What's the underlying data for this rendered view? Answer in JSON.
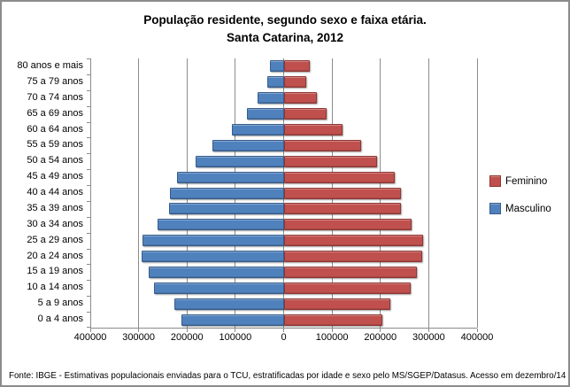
{
  "title": {
    "line1": "População residente, segundo sexo e faixa etária.",
    "line2": "Santa Catarina, 2012"
  },
  "legend": {
    "items": [
      {
        "label": "Feminino",
        "color": "#C0504D",
        "border": "#8C3836"
      },
      {
        "label": "Masculino",
        "color": "#4F81BD",
        "border": "#385D8A"
      }
    ]
  },
  "footer": {
    "text": "Fonte:  IBGE - Estimativas populacionais enviadas para o TCU, estratificadas por idade e sexo pelo MS/SGEP/Datasus. Acesso em dezembro/14"
  },
  "colors": {
    "grid": "#8c8c8c",
    "axis": "#8c8c8c",
    "frame_border": "#8c8c8c",
    "masculino_fill": "#4F81BD",
    "masculino_border": "#385D8A",
    "feminino_fill": "#C0504D",
    "feminino_border": "#8C3836"
  },
  "chart_data": {
    "type": "bar",
    "subtype": "population-pyramid",
    "title": "População residente, segundo sexo e faixa etária. Santa Catarina, 2012",
    "categories": [
      "80 anos e mais",
      "75 a 79 anos",
      "70 a 74 anos",
      "65 a 69 anos",
      "60 a 64 anos",
      "55 a 59 anos",
      "50 a 54 anos",
      "45 a 49 anos",
      "40 a 44 anos",
      "35 a 39 anos",
      "30 a 34 anos",
      "25 a 29 anos",
      "20 a 24 anos",
      "15 a 19 anos",
      "10 a 14 anos",
      "5 a 9 anos",
      "0 a 4 anos"
    ],
    "series": [
      {
        "name": "Masculino",
        "side": "left",
        "color": "#4F81BD",
        "border": "#385D8A",
        "values": [
          29000,
          33000,
          54000,
          76000,
          107000,
          147000,
          182000,
          220000,
          236000,
          238000,
          260000,
          292000,
          294000,
          279000,
          269000,
          227000,
          211000
        ]
      },
      {
        "name": "Feminino",
        "side": "right",
        "color": "#C0504D",
        "border": "#8C3836",
        "values": [
          54000,
          46000,
          68000,
          89000,
          121000,
          160000,
          193000,
          230000,
          242000,
          243000,
          264000,
          289000,
          286000,
          275000,
          262000,
          220000,
          204000
        ]
      }
    ],
    "x_axis": {
      "tick_labels": [
        "400000",
        "300000",
        "200000",
        "100000",
        "0",
        "100000",
        "200000",
        "300000",
        "400000"
      ],
      "max_each_side": 400000
    },
    "grid": true,
    "legend_position": "right"
  }
}
